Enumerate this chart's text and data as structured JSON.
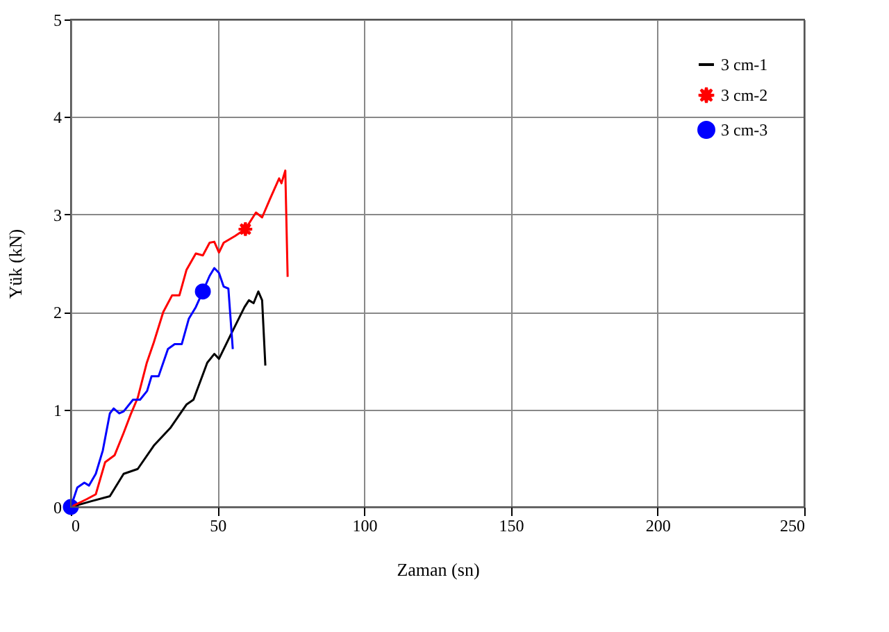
{
  "chart_data": {
    "type": "line",
    "xlabel": "Zaman (sn)",
    "ylabel": "Yük (kN)",
    "xlim": [
      0,
      250
    ],
    "xticks": [
      0,
      50,
      100,
      150,
      200,
      250
    ],
    "ylim": [
      0,
      5
    ],
    "yticks": [
      0,
      1,
      2,
      3,
      4,
      5
    ],
    "grid": true,
    "legend": "top right",
    "line_style": "solid",
    "series": [
      {
        "name": "3 cm-1",
        "color": "#000000",
        "x": [
          0,
          7,
          13.3,
          18,
          22.8,
          28.3,
          33.9,
          39.4,
          41.8,
          46.5,
          48.9,
          50.5,
          54.4,
          59.2,
          60.7,
          62.3,
          63.9,
          65.2,
          66.3
        ],
        "values": [
          0,
          0.06,
          0.11,
          0.34,
          0.39,
          0.63,
          0.81,
          1.05,
          1.1,
          1.48,
          1.57,
          1.52,
          1.76,
          2.05,
          2.12,
          2.09,
          2.21,
          2.12,
          1.45
        ]
      },
      {
        "name": "3 cm-2",
        "color": "#ff0000",
        "x": [
          0,
          5.4,
          8.5,
          11.7,
          14.9,
          18,
          20.4,
          22.8,
          25.9,
          28.3,
          31.5,
          34.5,
          37,
          39.4,
          42.6,
          45,
          47.3,
          48.9,
          50.5,
          52.1,
          56,
          59.5,
          63.1,
          65.2,
          67.9,
          71,
          71.8,
          73.1,
          73.9
        ],
        "values": [
          0,
          0.08,
          0.13,
          0.46,
          0.53,
          0.76,
          0.95,
          1.12,
          1.48,
          1.69,
          2.0,
          2.17,
          2.17,
          2.43,
          2.6,
          2.58,
          2.71,
          2.72,
          2.61,
          2.71,
          2.78,
          2.85,
          3.02,
          2.97,
          3.16,
          3.37,
          3.32,
          3.45,
          2.36
        ]
      },
      {
        "name": "3 cm-3",
        "color": "#0000ff",
        "x": [
          0,
          2.2,
          4.6,
          6.2,
          8.5,
          10.9,
          13.3,
          14.6,
          16.5,
          18,
          21.2,
          23.6,
          26,
          27.5,
          29.9,
          33.1,
          35.4,
          37.8,
          40.2,
          42.6,
          45,
          47.3,
          48.9,
          50.5,
          52.1,
          53.7,
          55.2
        ],
        "values": [
          0,
          0.2,
          0.25,
          0.22,
          0.34,
          0.58,
          0.96,
          1.01,
          0.96,
          0.98,
          1.1,
          1.1,
          1.19,
          1.34,
          1.34,
          1.62,
          1.67,
          1.67,
          1.93,
          2.05,
          2.21,
          2.37,
          2.45,
          2.4,
          2.26,
          2.24,
          1.62
        ]
      },
      {
        "type": "scatter",
        "color": "#ff0000",
        "marker": "star",
        "x": [
          59.5
        ],
        "values": [
          2.85
        ]
      },
      {
        "type": "scatter",
        "color": "#0000ff",
        "marker": "circle",
        "x": [
          0,
          45
        ],
        "values": [
          0,
          2.21
        ]
      }
    ]
  }
}
